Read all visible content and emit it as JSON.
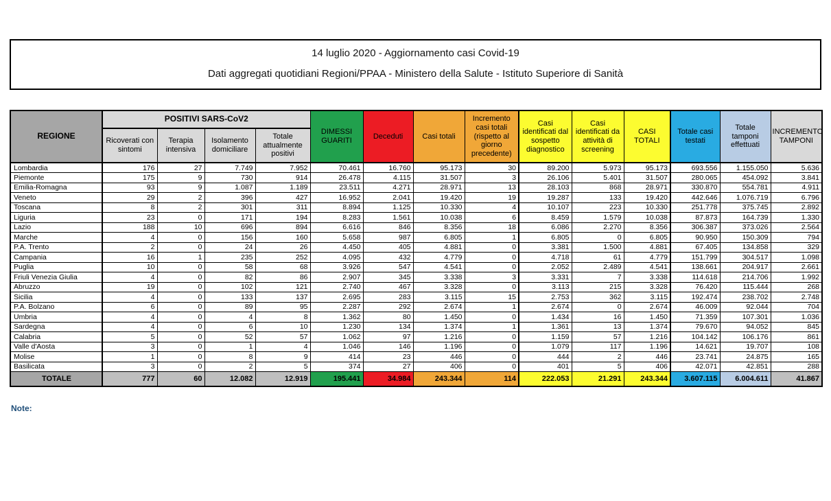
{
  "title": {
    "line1": "14 luglio 2020 - Aggiornamento casi Covid-19",
    "line2": "Dati aggregati quotidiani Regioni/PPAA - Ministero della Salute - Istituto Superiore di Sanità"
  },
  "note_label": "Note:",
  "colors": {
    "green": "#21A04D",
    "red": "#EC1C24",
    "orange": "#F0A738",
    "yellow": "#FCFC30",
    "blue": "#29ABE2",
    "light_blue": "#B8CCE4",
    "gray_dark": "#A6A6A6",
    "gray_light": "#D9D9D9",
    "gray_total": "#BFBFBF",
    "note_text": "#1F4E79"
  },
  "table": {
    "region_header": "REGIONE",
    "positivi_group_header": "POSITIVI SARS-CoV2",
    "columns": [
      {
        "key": "ricoverati_con_sintomi",
        "label": "Ricoverati con sintomi",
        "group": "positivi",
        "header_bg": "#D9D9D9",
        "total_bg": "#BFBFBF"
      },
      {
        "key": "terapia_intensiva",
        "label": "Terapia intensiva",
        "group": "positivi",
        "header_bg": "#D9D9D9",
        "total_bg": "#BFBFBF"
      },
      {
        "key": "isolamento_domiciliare",
        "label": "Isolamento domiciliare",
        "group": "positivi",
        "header_bg": "#D9D9D9",
        "total_bg": "#BFBFBF"
      },
      {
        "key": "totale_attualmente_positivi",
        "label": "Totale attualmente positivi",
        "group": "positivi",
        "header_bg": "#D9D9D9",
        "total_bg": "#BFBFBF"
      },
      {
        "key": "dimessi_guariti",
        "label": "DIMESSI GUARITI",
        "header_bg": "#21A04D",
        "total_bg": "#21A04D"
      },
      {
        "key": "deceduti",
        "label": "Deceduti",
        "header_bg": "#EC1C24",
        "total_bg": "#EC1C24"
      },
      {
        "key": "casi_totali",
        "label": "Casi totali",
        "header_bg": "#F0A738",
        "total_bg": "#F0A738"
      },
      {
        "key": "incremento_casi_totali",
        "label": "Incremento casi totali (rispetto al giorno precedente)",
        "header_bg": "#F0A738",
        "total_bg": "#F0A738",
        "thick_right": true
      },
      {
        "key": "casi_sospetto_diagnostico",
        "label": "Casi identificati dal sospetto diagnostico",
        "header_bg": "#FCFC30",
        "total_bg": "#FCFC30"
      },
      {
        "key": "casi_attivita_screening",
        "label": "Casi identificati da attività di screening",
        "header_bg": "#FCFC30",
        "total_bg": "#FCFC30"
      },
      {
        "key": "casi_totali_riepilogo",
        "label": "CASI TOTALI",
        "header_bg": "#FCFC30",
        "total_bg": "#FCFC30",
        "thick_right": true
      },
      {
        "key": "totale_casi_testati",
        "label": "Totale casi testati",
        "header_bg": "#29ABE2",
        "total_bg": "#29ABE2"
      },
      {
        "key": "totale_tamponi_effettuati",
        "label": "Totale tamponi effettuati",
        "header_bg": "#B8CCE4",
        "total_bg": "#B8CCE4"
      },
      {
        "key": "incremento_tamponi",
        "label": "INCREMENTO TAMPONI",
        "header_bg": "#D9D9D9",
        "total_bg": "#BFBFBF"
      }
    ],
    "rows": [
      {
        "region": "Lombardia",
        "values": [
          "176",
          "27",
          "7.749",
          "7.952",
          "70.461",
          "16.760",
          "95.173",
          "30",
          "89.200",
          "5.973",
          "95.173",
          "693.556",
          "1.155.050",
          "5.636"
        ]
      },
      {
        "region": "Piemonte",
        "values": [
          "175",
          "9",
          "730",
          "914",
          "26.478",
          "4.115",
          "31.507",
          "3",
          "26.106",
          "5.401",
          "31.507",
          "280.065",
          "454.092",
          "3.841"
        ]
      },
      {
        "region": "Emilia-Romagna",
        "values": [
          "93",
          "9",
          "1.087",
          "1.189",
          "23.511",
          "4.271",
          "28.971",
          "13",
          "28.103",
          "868",
          "28.971",
          "330.870",
          "554.781",
          "4.911"
        ]
      },
      {
        "region": "Veneto",
        "values": [
          "29",
          "2",
          "396",
          "427",
          "16.952",
          "2.041",
          "19.420",
          "19",
          "19.287",
          "133",
          "19.420",
          "442.646",
          "1.076.719",
          "6.796"
        ]
      },
      {
        "region": "Toscana",
        "values": [
          "8",
          "2",
          "301",
          "311",
          "8.894",
          "1.125",
          "10.330",
          "4",
          "10.107",
          "223",
          "10.330",
          "251.778",
          "375.745",
          "2.892"
        ]
      },
      {
        "region": "Liguria",
        "values": [
          "23",
          "0",
          "171",
          "194",
          "8.283",
          "1.561",
          "10.038",
          "6",
          "8.459",
          "1.579",
          "10.038",
          "87.873",
          "164.739",
          "1.330"
        ]
      },
      {
        "region": "Lazio",
        "values": [
          "188",
          "10",
          "696",
          "894",
          "6.616",
          "846",
          "8.356",
          "18",
          "6.086",
          "2.270",
          "8.356",
          "306.387",
          "373.026",
          "2.564"
        ]
      },
      {
        "region": "Marche",
        "values": [
          "4",
          "0",
          "156",
          "160",
          "5.658",
          "987",
          "6.805",
          "1",
          "6.805",
          "0",
          "6.805",
          "90.950",
          "150.309",
          "794"
        ]
      },
      {
        "region": "P.A. Trento",
        "values": [
          "2",
          "0",
          "24",
          "26",
          "4.450",
          "405",
          "4.881",
          "0",
          "3.381",
          "1.500",
          "4.881",
          "67.405",
          "134.858",
          "329"
        ]
      },
      {
        "region": "Campania",
        "values": [
          "16",
          "1",
          "235",
          "252",
          "4.095",
          "432",
          "4.779",
          "0",
          "4.718",
          "61",
          "4.779",
          "151.799",
          "304.517",
          "1.098"
        ]
      },
      {
        "region": "Puglia",
        "values": [
          "10",
          "0",
          "58",
          "68",
          "3.926",
          "547",
          "4.541",
          "0",
          "2.052",
          "2.489",
          "4.541",
          "138.661",
          "204.917",
          "2.661"
        ]
      },
      {
        "region": "Friuli Venezia Giulia",
        "values": [
          "4",
          "0",
          "82",
          "86",
          "2.907",
          "345",
          "3.338",
          "3",
          "3.331",
          "7",
          "3.338",
          "114.618",
          "214.706",
          "1.992"
        ]
      },
      {
        "region": "Abruzzo",
        "values": [
          "19",
          "0",
          "102",
          "121",
          "2.740",
          "467",
          "3.328",
          "0",
          "3.113",
          "215",
          "3.328",
          "76.420",
          "115.444",
          "268"
        ]
      },
      {
        "region": "Sicilia",
        "values": [
          "4",
          "0",
          "133",
          "137",
          "2.695",
          "283",
          "3.115",
          "15",
          "2.753",
          "362",
          "3.115",
          "192.474",
          "238.702",
          "2.748"
        ]
      },
      {
        "region": "P.A. Bolzano",
        "values": [
          "6",
          "0",
          "89",
          "95",
          "2.287",
          "292",
          "2.674",
          "1",
          "2.674",
          "0",
          "2.674",
          "46.009",
          "92.044",
          "704"
        ]
      },
      {
        "region": "Umbria",
        "values": [
          "4",
          "0",
          "4",
          "8",
          "1.362",
          "80",
          "1.450",
          "0",
          "1.434",
          "16",
          "1.450",
          "71.359",
          "107.301",
          "1.036"
        ]
      },
      {
        "region": "Sardegna",
        "values": [
          "4",
          "0",
          "6",
          "10",
          "1.230",
          "134",
          "1.374",
          "1",
          "1.361",
          "13",
          "1.374",
          "79.670",
          "94.052",
          "845"
        ]
      },
      {
        "region": "Calabria",
        "values": [
          "5",
          "0",
          "52",
          "57",
          "1.062",
          "97",
          "1.216",
          "0",
          "1.159",
          "57",
          "1.216",
          "104.142",
          "106.176",
          "861"
        ]
      },
      {
        "region": "Valle d'Aosta",
        "values": [
          "3",
          "0",
          "1",
          "4",
          "1.046",
          "146",
          "1.196",
          "0",
          "1.079",
          "117",
          "1.196",
          "14.621",
          "19.707",
          "108"
        ]
      },
      {
        "region": "Molise",
        "values": [
          "1",
          "0",
          "8",
          "9",
          "414",
          "23",
          "446",
          "0",
          "444",
          "2",
          "446",
          "23.741",
          "24.875",
          "165"
        ]
      },
      {
        "region": "Basilicata",
        "values": [
          "3",
          "0",
          "2",
          "5",
          "374",
          "27",
          "406",
          "0",
          "401",
          "5",
          "406",
          "42.071",
          "42.851",
          "288"
        ]
      }
    ],
    "total": {
      "label": "TOTALE",
      "values": [
        "777",
        "60",
        "12.082",
        "12.919",
        "195.441",
        "34.984",
        "243.344",
        "114",
        "222.053",
        "21.291",
        "243.344",
        "3.607.115",
        "6.004.611",
        "41.867"
      ]
    }
  }
}
